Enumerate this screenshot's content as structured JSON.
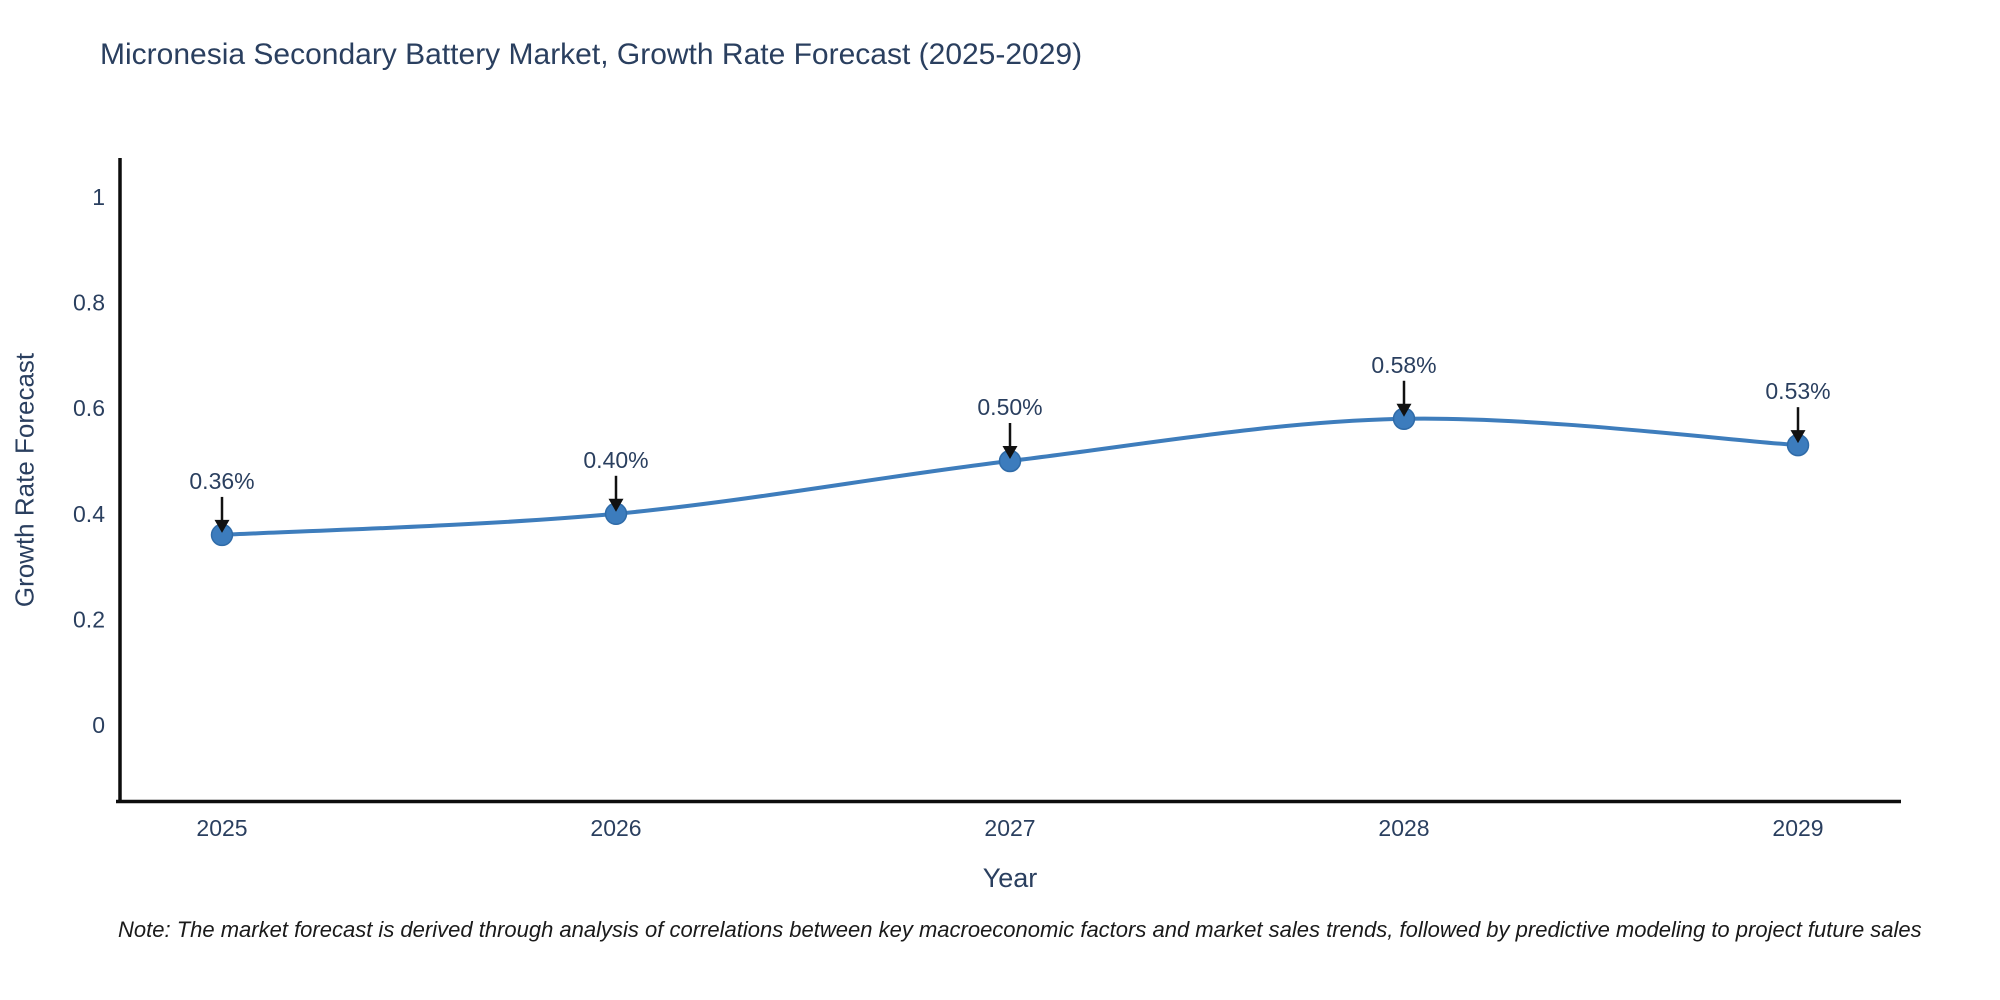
{
  "title": "Micronesia Secondary Battery Market, Growth Rate Forecast (2025-2029)",
  "note": "Note: The market forecast is derived through analysis of correlations between key macroeconomic factors and market sales trends, followed by predictive modeling to project future sales",
  "chart_data": {
    "type": "line",
    "title": "Micronesia Secondary Battery Market, Growth Rate Forecast (2025-2029)",
    "xlabel": "Year",
    "ylabel": "Growth Rate Forecast",
    "x": [
      "2025",
      "2026",
      "2027",
      "2028",
      "2029"
    ],
    "series": [
      {
        "name": "Growth Rate Forecast",
        "values": [
          0.36,
          0.4,
          0.5,
          0.58,
          0.53
        ]
      }
    ],
    "point_labels": [
      "0.36%",
      "0.40%",
      "0.50%",
      "0.58%",
      "0.53%"
    ],
    "ytick_labels": [
      "0",
      "0.2",
      "0.4",
      "0.6",
      "0.8",
      "1"
    ],
    "ytick_values": [
      0,
      0.2,
      0.4,
      0.6,
      0.8,
      1
    ],
    "ylim": [
      -0.145,
      1.08
    ],
    "grid": false,
    "legend_position": "none",
    "line_smoothing": "spline",
    "colors": {
      "line": "#3e7dbc",
      "marker_fill": "#3c7cbd",
      "marker_edge": "#2f6ba8",
      "axis": "#0d0d0d",
      "text": "#2a3f5f",
      "annotation_arrow": "#111111"
    }
  }
}
